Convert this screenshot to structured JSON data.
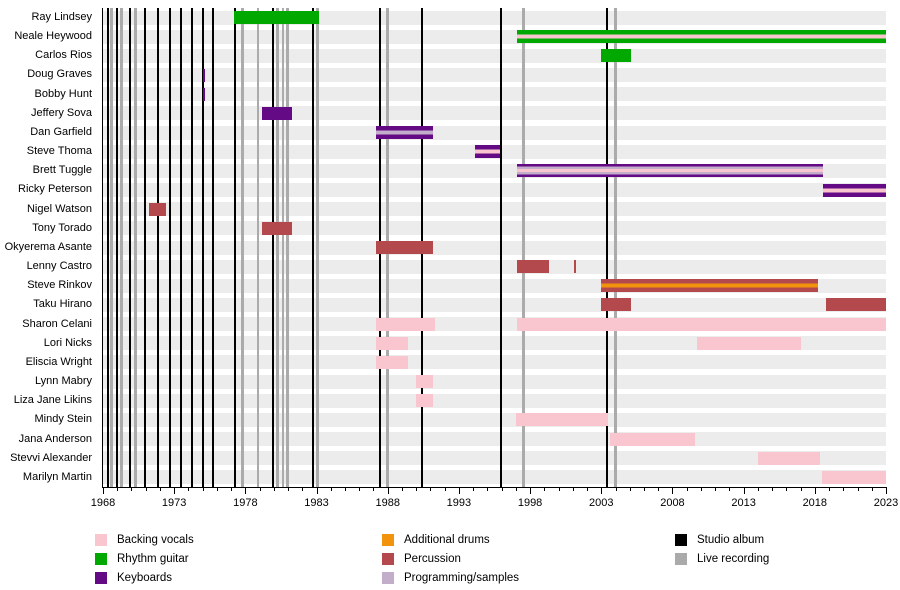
{
  "chart_data": {
    "type": "timeline",
    "description": "Band members timeline: roles of touring/session musicians over time with studio album and live recording markers",
    "x_axis": {
      "start": 1968,
      "end": 2023,
      "major_tick_step": 5,
      "minor_tick_step": 1,
      "tick_labels": [
        "1968",
        "1973",
        "1978",
        "1983",
        "1988",
        "1993",
        "1998",
        "2003",
        "2008",
        "2013",
        "2018",
        "2023"
      ]
    },
    "colors": {
      "backing_vocals": "#f9c6cf",
      "rhythm_guitar": "#00a800",
      "keyboards": "#650a85",
      "additional_drums": "#f2930d",
      "percussion": "#b4494d",
      "programming_samples": "#c2aecb",
      "studio_album": "#000000",
      "live_recording": "#aaaaaa",
      "row_band": "#ececec"
    },
    "members": [
      {
        "name": "Ray Lindsey",
        "bars": [
          {
            "start": 1977.2,
            "end": 1983.2,
            "stripes": [
              "rhythm_guitar"
            ]
          }
        ]
      },
      {
        "name": "Neale Heywood",
        "bars": [
          {
            "start": 1997.1,
            "end": 2023.0,
            "stripes": [
              "rhythm_guitar",
              "backing_vocals",
              "rhythm_guitar"
            ]
          }
        ]
      },
      {
        "name": "Carlos Rios",
        "bars": [
          {
            "start": 2003.0,
            "end": 2005.1,
            "stripes": [
              "rhythm_guitar"
            ]
          }
        ]
      },
      {
        "name": "Doug Graves",
        "bars": [
          {
            "start": 1975.0,
            "end": 1975.15,
            "stripes": [
              "keyboards"
            ]
          }
        ]
      },
      {
        "name": "Bobby Hunt",
        "bars": [
          {
            "start": 1975.0,
            "end": 1975.15,
            "stripes": [
              "keyboards"
            ]
          }
        ]
      },
      {
        "name": "Jeffery Sova",
        "bars": [
          {
            "start": 1979.2,
            "end": 1981.3,
            "stripes": [
              "keyboards"
            ]
          }
        ]
      },
      {
        "name": "Dan Garfield",
        "bars": [
          {
            "start": 1987.2,
            "end": 1991.2,
            "stripes": [
              "keyboards",
              "programming_samples",
              "keyboards"
            ]
          }
        ]
      },
      {
        "name": "Steve Thoma",
        "bars": [
          {
            "start": 1994.1,
            "end": 1995.9,
            "stripes": [
              "keyboards",
              "backing_vocals",
              "keyboards"
            ]
          }
        ]
      },
      {
        "name": "Brett Tuggle",
        "bars": [
          {
            "start": 1997.1,
            "end": 2018.6,
            "stripes": [
              "keyboards",
              "programming_samples",
              "backing_vocals",
              "programming_samples",
              "keyboards"
            ]
          }
        ]
      },
      {
        "name": "Ricky Peterson",
        "bars": [
          {
            "start": 2018.6,
            "end": 2023.0,
            "stripes": [
              "keyboards",
              "backing_vocals",
              "keyboards"
            ]
          }
        ]
      },
      {
        "name": "Nigel Watson",
        "bars": [
          {
            "start": 1971.2,
            "end": 1972.4,
            "stripes": [
              "percussion"
            ]
          }
        ]
      },
      {
        "name": "Tony Torado",
        "bars": [
          {
            "start": 1979.2,
            "end": 1981.3,
            "stripes": [
              "percussion"
            ]
          }
        ]
      },
      {
        "name": "Okyerema Asante",
        "bars": [
          {
            "start": 1987.2,
            "end": 1991.2,
            "stripes": [
              "percussion"
            ]
          }
        ]
      },
      {
        "name": "Lenny Castro",
        "bars": [
          {
            "start": 1997.1,
            "end": 1999.3,
            "stripes": [
              "percussion"
            ]
          },
          {
            "start": 2001.1,
            "end": 2001.25,
            "stripes": [
              "percussion"
            ]
          }
        ]
      },
      {
        "name": "Steve Rinkov",
        "bars": [
          {
            "start": 2003.0,
            "end": 2018.2,
            "stripes": [
              "percussion",
              "additional_drums",
              "percussion"
            ]
          }
        ]
      },
      {
        "name": "Taku Hirano",
        "bars": [
          {
            "start": 2003.0,
            "end": 2005.1,
            "stripes": [
              "percussion"
            ]
          },
          {
            "start": 2018.8,
            "end": 2023.0,
            "stripes": [
              "percussion"
            ]
          }
        ]
      },
      {
        "name": "Sharon Celani",
        "bars": [
          {
            "start": 1987.2,
            "end": 1991.3,
            "stripes": [
              "backing_vocals"
            ]
          },
          {
            "start": 1997.1,
            "end": 2023.0,
            "stripes": [
              "backing_vocals"
            ]
          }
        ]
      },
      {
        "name": "Lori Nicks",
        "bars": [
          {
            "start": 1987.2,
            "end": 1989.4,
            "stripes": [
              "backing_vocals"
            ]
          },
          {
            "start": 2009.7,
            "end": 2017.0,
            "stripes": [
              "backing_vocals"
            ]
          }
        ]
      },
      {
        "name": "Eliscia Wright",
        "bars": [
          {
            "start": 1987.2,
            "end": 1989.4,
            "stripes": [
              "backing_vocals"
            ]
          }
        ]
      },
      {
        "name": "Lynn Mabry",
        "bars": [
          {
            "start": 1990.0,
            "end": 1991.2,
            "stripes": [
              "backing_vocals"
            ]
          }
        ]
      },
      {
        "name": "Liza Jane Likins",
        "bars": [
          {
            "start": 1990.0,
            "end": 1991.2,
            "stripes": [
              "backing_vocals"
            ]
          }
        ]
      },
      {
        "name": "Mindy Stein",
        "bars": [
          {
            "start": 1997.0,
            "end": 2003.45,
            "stripes": [
              "backing_vocals"
            ]
          }
        ]
      },
      {
        "name": "Jana Anderson",
        "bars": [
          {
            "start": 2003.6,
            "end": 2009.6,
            "stripes": [
              "backing_vocals"
            ]
          }
        ]
      },
      {
        "name": "Stevvi Alexander",
        "bars": [
          {
            "start": 2014.0,
            "end": 2018.4,
            "stripes": [
              "backing_vocals"
            ]
          }
        ]
      },
      {
        "name": "Marilyn Martin",
        "bars": [
          {
            "start": 2018.5,
            "end": 2023.0,
            "stripes": [
              "backing_vocals"
            ]
          }
        ]
      }
    ],
    "studio_albums": [
      1968.35,
      1969.0,
      1969.9,
      1970.95,
      1971.85,
      1972.7,
      1973.5,
      1974.25,
      1975.0,
      1975.75,
      1977.3,
      1979.95,
      1982.75,
      1987.45,
      1990.4,
      1995.95,
      2003.4
    ],
    "live_recordings": [
      1968.6,
      1969.3,
      1970.3,
      1977.8,
      1978.9,
      1980.25,
      1980.65,
      1980.95,
      1983.05,
      1988.0,
      1997.55,
      2004.0
    ],
    "legend": {
      "columns": [
        {
          "items": [
            {
              "label": "Backing vocals",
              "color": "backing_vocals"
            },
            {
              "label": "Rhythm guitar",
              "color": "rhythm_guitar"
            },
            {
              "label": "Keyboards",
              "color": "keyboards"
            }
          ]
        },
        {
          "items": [
            {
              "label": "Additional drums",
              "color": "additional_drums"
            },
            {
              "label": "Percussion",
              "color": "percussion"
            },
            {
              "label": "Programming/samples",
              "color": "programming_samples"
            }
          ]
        },
        {
          "items": [
            {
              "label": "Studio album",
              "color": "studio_album"
            },
            {
              "label": "Live recording",
              "color": "live_recording"
            }
          ]
        }
      ]
    }
  }
}
